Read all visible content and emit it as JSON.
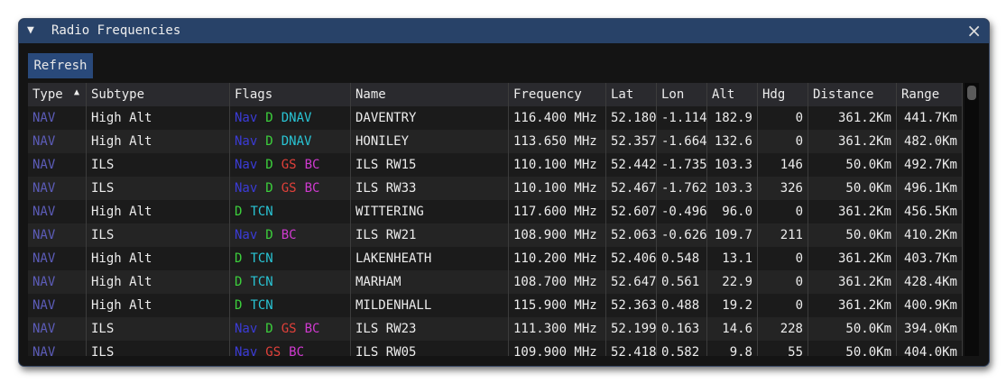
{
  "window": {
    "title": "Radio Frequencies",
    "refresh_button": "Refresh"
  },
  "table": {
    "columns": [
      "Type",
      "Subtype",
      "Flags",
      "Name",
      "Frequency",
      "Lat",
      "Lon",
      "Alt",
      "Hdg",
      "Distance",
      "Range"
    ],
    "type_color": "#5c5cb8",
    "rows": [
      [
        "NAV",
        "High Alt",
        [
          {
            "text": "Nav",
            "color": "#3b3bd6"
          },
          {
            "text": "D",
            "color": "#3ccf3c"
          },
          {
            "text": "DNAV",
            "color": "#29c4d4"
          }
        ],
        "DAVENTRY",
        "116.400 MHz",
        "52.180",
        "-1.114",
        "182.9",
        "0",
        "361.2Km",
        "441.7Km"
      ],
      [
        "NAV",
        "High Alt",
        [
          {
            "text": "Nav",
            "color": "#3b3bd6"
          },
          {
            "text": "D",
            "color": "#3ccf3c"
          },
          {
            "text": "DNAV",
            "color": "#29c4d4"
          }
        ],
        "HONILEY",
        "113.650 MHz",
        "52.357",
        "-1.664",
        "132.6",
        "0",
        "361.2Km",
        "482.0Km"
      ],
      [
        "NAV",
        "ILS",
        [
          {
            "text": "Nav",
            "color": "#3b3bd6"
          },
          {
            "text": "D",
            "color": "#3ccf3c"
          },
          {
            "text": "GS",
            "color": "#e0403a"
          },
          {
            "text": "BC",
            "color": "#d03ad0"
          }
        ],
        "ILS RW15",
        "110.100 MHz",
        "52.442",
        "-1.735",
        "103.3",
        "146",
        "50.0Km",
        "492.7Km"
      ],
      [
        "NAV",
        "ILS",
        [
          {
            "text": "Nav",
            "color": "#3b3bd6"
          },
          {
            "text": "D",
            "color": "#3ccf3c"
          },
          {
            "text": "GS",
            "color": "#e0403a"
          },
          {
            "text": "BC",
            "color": "#d03ad0"
          }
        ],
        "ILS RW33",
        "110.100 MHz",
        "52.467",
        "-1.762",
        "103.3",
        "326",
        "50.0Km",
        "496.1Km"
      ],
      [
        "NAV",
        "High Alt",
        [
          {
            "text": "D",
            "color": "#3ccf3c"
          },
          {
            "text": "TCN",
            "color": "#29c4d4"
          }
        ],
        "WITTERING",
        "117.600 MHz",
        "52.607",
        "-0.496",
        "96.0",
        "0",
        "361.2Km",
        "456.5Km"
      ],
      [
        "NAV",
        "ILS",
        [
          {
            "text": "Nav",
            "color": "#3b3bd6"
          },
          {
            "text": "D",
            "color": "#3ccf3c"
          },
          {
            "text": "BC",
            "color": "#d03ad0"
          }
        ],
        "ILS RW21",
        "108.900 MHz",
        "52.063",
        "-0.626",
        "109.7",
        "211",
        "50.0Km",
        "410.2Km"
      ],
      [
        "NAV",
        "High Alt",
        [
          {
            "text": "D",
            "color": "#3ccf3c"
          },
          {
            "text": "TCN",
            "color": "#29c4d4"
          }
        ],
        "LAKENHEATH",
        "110.200 MHz",
        "52.406",
        "0.548",
        "13.1",
        "0",
        "361.2Km",
        "403.7Km"
      ],
      [
        "NAV",
        "High Alt",
        [
          {
            "text": "D",
            "color": "#3ccf3c"
          },
          {
            "text": "TCN",
            "color": "#29c4d4"
          }
        ],
        "MARHAM",
        "108.700 MHz",
        "52.647",
        "0.561",
        "22.9",
        "0",
        "361.2Km",
        "428.4Km"
      ],
      [
        "NAV",
        "High Alt",
        [
          {
            "text": "D",
            "color": "#3ccf3c"
          },
          {
            "text": "TCN",
            "color": "#29c4d4"
          }
        ],
        "MILDENHALL",
        "115.900 MHz",
        "52.363",
        "0.488",
        "19.2",
        "0",
        "361.2Km",
        "400.9Km"
      ],
      [
        "NAV",
        "ILS",
        [
          {
            "text": "Nav",
            "color": "#3b3bd6"
          },
          {
            "text": "D",
            "color": "#3ccf3c"
          },
          {
            "text": "GS",
            "color": "#e0403a"
          },
          {
            "text": "BC",
            "color": "#d03ad0"
          }
        ],
        "ILS RW23",
        "111.300 MHz",
        "52.199",
        "0.163",
        "14.6",
        "228",
        "50.0Km",
        "394.0Km"
      ],
      [
        "NAV",
        "ILS",
        [
          {
            "text": "Nav",
            "color": "#3b3bd6"
          },
          {
            "text": "GS",
            "color": "#e0403a"
          },
          {
            "text": "BC",
            "color": "#d03ad0"
          }
        ],
        "ILS RW05",
        "109.900 MHz",
        "52.418",
        "0.582",
        "9.8",
        "55",
        "50.0Km",
        "404.0Km"
      ]
    ]
  }
}
